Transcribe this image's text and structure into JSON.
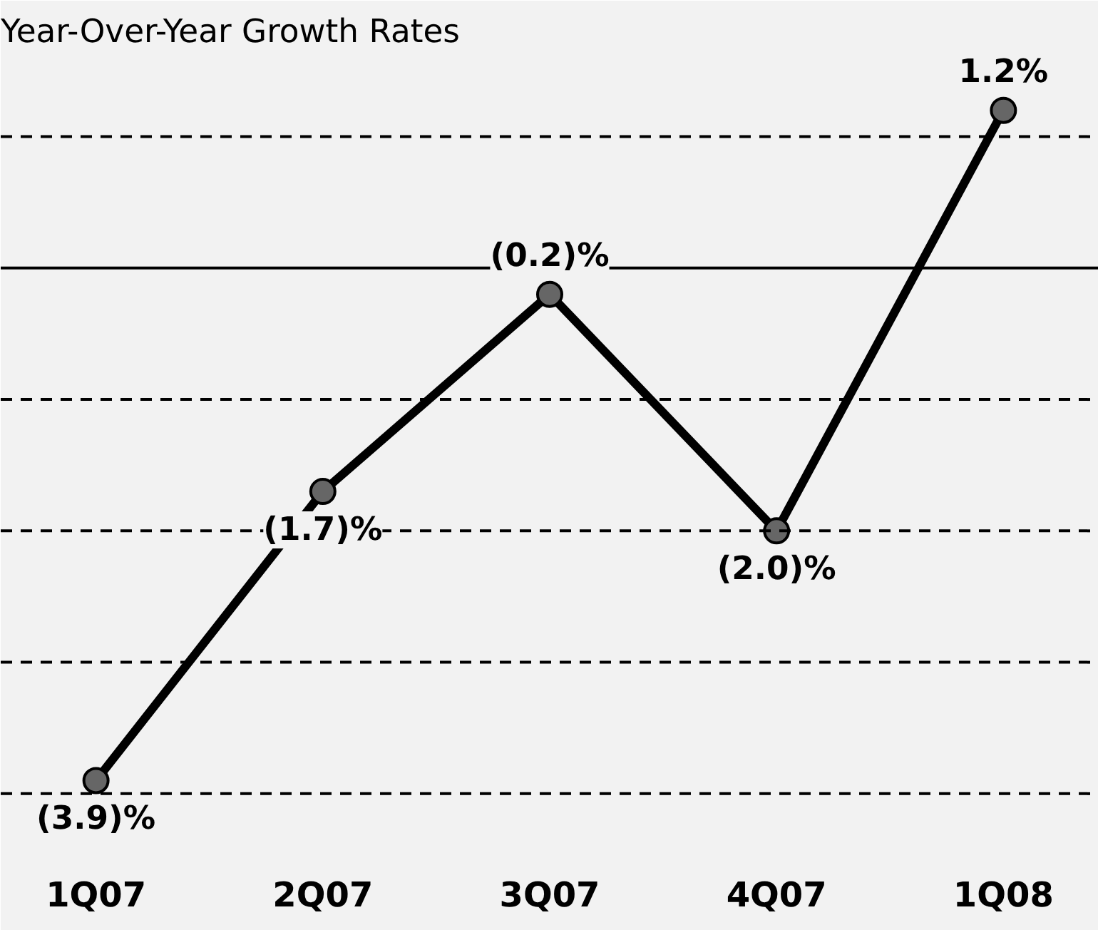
{
  "chart_data": {
    "type": "line",
    "title": "Year-Over-Year Growth Rates",
    "categories": [
      "1Q07",
      "2Q07",
      "3Q07",
      "4Q07",
      "1Q08"
    ],
    "series": [
      {
        "color": "#000000",
        "values": [
          -3.9,
          -1.7,
          -0.2,
          -2.0,
          1.2
        ],
        "value_labels": [
          "(3.9)%",
          "(1.7)%",
          "(0.2)%",
          "(2.0)%",
          "1.2%"
        ]
      }
    ],
    "ylim": [
      -4.5,
      1.6
    ],
    "marker": "circle",
    "line_style": "solid",
    "grid": false,
    "ref_lines": [
      {
        "axis": "y",
        "value": 0,
        "color": "#000000",
        "line_style": "solid"
      },
      {
        "axis": "y",
        "value": 1,
        "color": "#000000",
        "line_style": "dashed"
      },
      {
        "axis": "y",
        "value": -1,
        "color": "#000000",
        "line_style": "dashed"
      },
      {
        "axis": "y",
        "value": -2,
        "color": "#000000",
        "line_style": "dashed"
      },
      {
        "axis": "y",
        "value": -3,
        "color": "#000000",
        "line_style": "dashed"
      },
      {
        "axis": "y",
        "value": -4,
        "color": "#000000",
        "line_style": "dashed"
      }
    ]
  }
}
